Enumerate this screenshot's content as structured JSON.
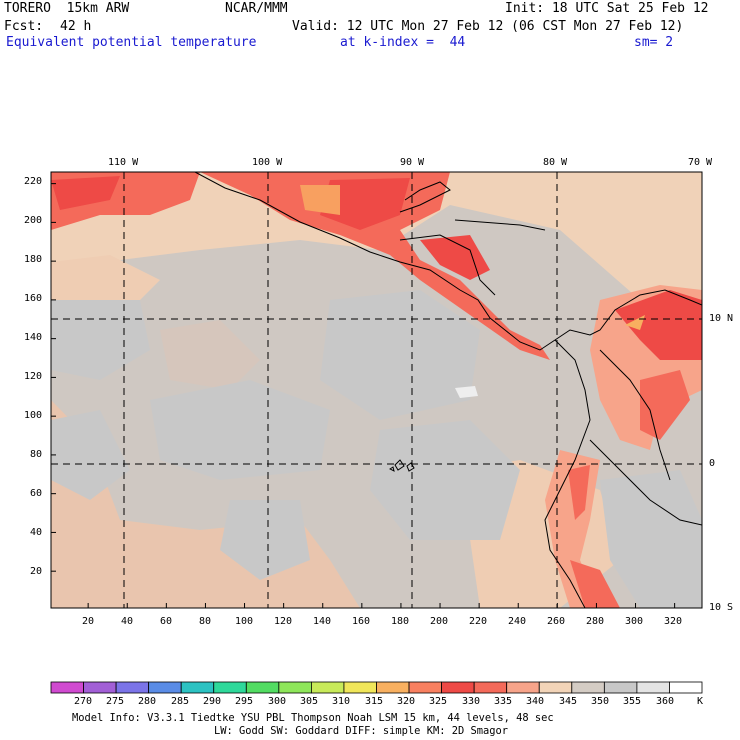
{
  "header": {
    "model": "TORERO  15km ARW",
    "org": "NCAR/MMM",
    "init": "Init: 18 UTC Sat 25 Feb 12",
    "fcst_label": "Fcst:",
    "fcst_value": "42 h",
    "valid": "Valid: 12 UTC Mon 27 Feb 12 (06 CST Mon 27 Feb 12)",
    "field": "Equivalent potential temperature",
    "level": "at k-index =  44",
    "smooth": "sm= 2"
  },
  "map": {
    "longitude_labels": [
      "110 W",
      "100 W",
      "90 W",
      "80 W",
      "70 W"
    ],
    "latitude_labels": [
      "10 N",
      "0",
      "10 S"
    ],
    "x_grid_labels": [
      "20",
      "40",
      "60",
      "80",
      "100",
      "120",
      "140",
      "160",
      "180",
      "200",
      "220",
      "240",
      "260",
      "280",
      "300",
      "320"
    ],
    "y_grid_labels": [
      "220",
      "200",
      "180",
      "160",
      "140",
      "120",
      "100",
      "80",
      "60",
      "40",
      "20"
    ],
    "x_grid_values": [
      20,
      40,
      60,
      80,
      100,
      120,
      140,
      160,
      180,
      200,
      220,
      240,
      260,
      280,
      300,
      320
    ],
    "y_grid_values": [
      220,
      200,
      180,
      160,
      140,
      120,
      100,
      80,
      60,
      40,
      20
    ],
    "grid_range": {
      "x": [
        1,
        334
      ],
      "y": [
        1,
        226
      ]
    }
  },
  "colorbar": {
    "labels": [
      "270",
      "275",
      "280",
      "285",
      "290",
      "295",
      "300",
      "305",
      "310",
      "315",
      "320",
      "325",
      "330",
      "335",
      "340",
      "345",
      "350",
      "355",
      "360"
    ],
    "unit": "K",
    "colors": [
      "#d04ad0",
      "#a25fd6",
      "#7b74e8",
      "#5a8ce6",
      "#2cc2c2",
      "#2ed89a",
      "#52dc62",
      "#8ee65a",
      "#c8ea5a",
      "#f0e65a",
      "#f8b060",
      "#f88060",
      "#ee4a46",
      "#f46a5a",
      "#f7a48a",
      "#f2d4b8",
      "#d4ccc4",
      "#c8c8c8",
      "#e4e4e4",
      "#ffffff"
    ]
  },
  "footer": {
    "line1": "Model Info: V3.3.1    Tiedtke YSU PBL  Thompson    Noah LSM  15 km,   44 levels,   48 sec",
    "line2": "LW: Godd SW: Goddard DIFF: simple KM: 2D Smagor"
  }
}
